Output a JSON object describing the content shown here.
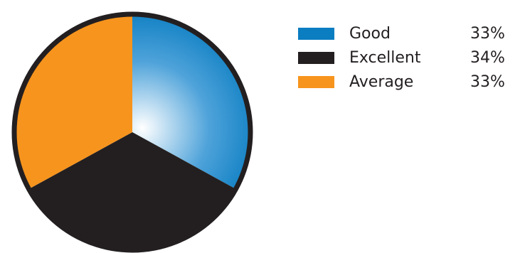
{
  "chart_data": {
    "type": "pie",
    "slices": [
      {
        "label": "Good",
        "value": 33,
        "display": "33%",
        "color": "#0b7dc1"
      },
      {
        "label": "Excellent",
        "value": 34,
        "display": "34%",
        "color": "#231f20"
      },
      {
        "label": "Average",
        "value": 33,
        "display": "33%",
        "color": "#f7941d"
      }
    ],
    "legend_position": "right",
    "outline_color": "#231f20"
  }
}
